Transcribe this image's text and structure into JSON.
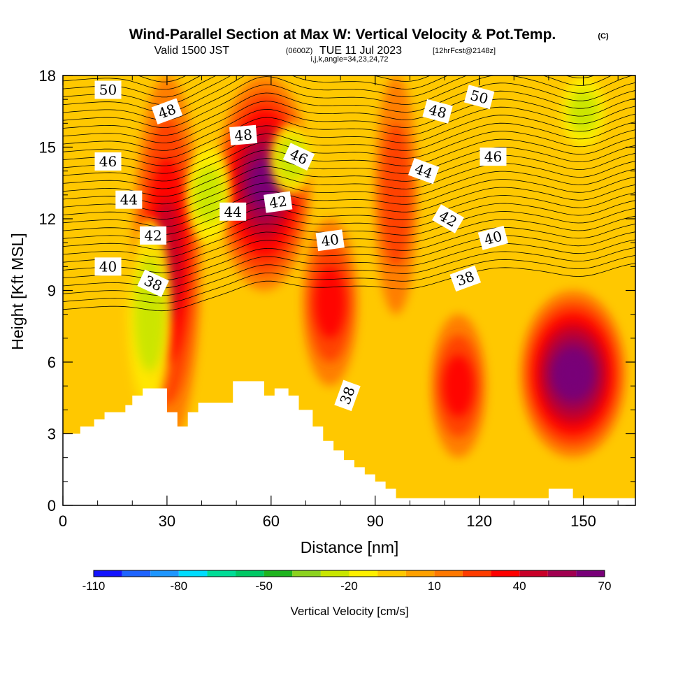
{
  "title": {
    "main": "Wind-Parallel Section at Max W: Vertical Velocity & Pot.Temp.",
    "copyright": "(C)",
    "valid_prefix": "Valid 1500 JST",
    "valid_utc": "(0600Z)",
    "valid_date": "TUE 11 Jul 2023",
    "forecast": "[12hrFcst@2148z]",
    "indices": "i,j,k,angle=34,23,24,72"
  },
  "chart_data": {
    "type": "heatmap",
    "xlabel": "Distance [nm]",
    "ylabel": "Height [Kft MSL]",
    "xlim": [
      0,
      165
    ],
    "ylim": [
      0,
      18
    ],
    "x_ticks": [
      0,
      30,
      60,
      90,
      120,
      150
    ],
    "y_ticks": [
      0,
      3,
      6,
      9,
      12,
      15,
      18
    ],
    "colorbar": {
      "title": "Vertical Velocity [cm/s]",
      "labels": [
        -110,
        -80,
        -50,
        -20,
        10,
        40,
        70
      ],
      "levels": [
        -110,
        -100,
        -90,
        -80,
        -70,
        -60,
        -50,
        -40,
        -30,
        -20,
        -10,
        0,
        10,
        20,
        30,
        40,
        50,
        60,
        70
      ],
      "colors": [
        "#1414ff",
        "#1e64ff",
        "#1e96ff",
        "#00dcff",
        "#00dc96",
        "#00c864",
        "#1eb41e",
        "#8cd21e",
        "#c8e600",
        "#fff000",
        "#ffc800",
        "#ffa000",
        "#ff7800",
        "#ff3c00",
        "#ff0000",
        "#c80028",
        "#a00050",
        "#780078"
      ],
      "position": "bottom"
    },
    "velocity_cores": [
      {
        "x": 30,
        "ymin": 2.5,
        "ymax": 18,
        "w": 40,
        "band": "updraft"
      },
      {
        "x": 58,
        "ymin": 9,
        "ymax": 18,
        "w": 60,
        "band": "updraft"
      },
      {
        "x": 77,
        "ymin": 5,
        "ymax": 12,
        "w": 30,
        "band": "updraft"
      },
      {
        "x": 96,
        "ymin": 8,
        "ymax": 18,
        "w": 25,
        "band": "updraft"
      },
      {
        "x": 114,
        "ymin": 2,
        "ymax": 8,
        "w": 35,
        "band": "updraft"
      },
      {
        "x": 147,
        "ymin": 2,
        "ymax": 9,
        "w": 70,
        "band": "updraft"
      },
      {
        "x": 25,
        "ymin": 4,
        "ymax": 12,
        "w": -20,
        "band": "downdraft"
      },
      {
        "x": 42,
        "ymin": 11,
        "ymax": 15,
        "w": -20,
        "band": "downdraft"
      },
      {
        "x": 66,
        "ymin": 13,
        "ymax": 16,
        "w": -20,
        "band": "downdraft"
      },
      {
        "x": 150,
        "ymin": 15,
        "ymax": 18,
        "w": -20,
        "band": "downdraft"
      }
    ],
    "theta_contours": {
      "labels": [
        {
          "text": "50",
          "x": 13,
          "y": 17.4
        },
        {
          "text": "48",
          "x": 30,
          "y": 16.5,
          "rot": -20
        },
        {
          "text": "48",
          "x": 52,
          "y": 15.5,
          "rot": -5
        },
        {
          "text": "46",
          "x": 68,
          "y": 14.6,
          "rot": 25
        },
        {
          "text": "46",
          "x": 13,
          "y": 14.4
        },
        {
          "text": "44",
          "x": 19,
          "y": 12.8
        },
        {
          "text": "44",
          "x": 49,
          "y": 12.3
        },
        {
          "text": "42",
          "x": 62,
          "y": 12.7,
          "rot": -8
        },
        {
          "text": "42",
          "x": 26,
          "y": 11.3
        },
        {
          "text": "40",
          "x": 77,
          "y": 11.1,
          "rot": -8
        },
        {
          "text": "40",
          "x": 13,
          "y": 10.0
        },
        {
          "text": "38",
          "x": 26,
          "y": 9.3,
          "rot": 25
        },
        {
          "text": "50",
          "x": 120,
          "y": 17.1,
          "rot": 15
        },
        {
          "text": "48",
          "x": 108,
          "y": 16.5,
          "rot": 15
        },
        {
          "text": "44",
          "x": 104,
          "y": 14.0,
          "rot": 20
        },
        {
          "text": "46",
          "x": 124,
          "y": 14.6
        },
        {
          "text": "42",
          "x": 111,
          "y": 12.0,
          "rot": 30
        },
        {
          "text": "40",
          "x": 124,
          "y": 11.2,
          "rot": -15
        },
        {
          "text": "38",
          "x": 116,
          "y": 9.5,
          "rot": -20
        },
        {
          "text": "38",
          "x": 82,
          "y": 4.6,
          "rot": -70
        }
      ]
    },
    "terrain": [
      [
        0,
        3.0
      ],
      [
        5,
        3.3
      ],
      [
        9,
        3.6
      ],
      [
        12,
        3.9
      ],
      [
        18,
        4.2
      ],
      [
        20,
        4.6
      ],
      [
        23,
        4.9
      ],
      [
        30,
        3.9
      ],
      [
        33,
        3.3
      ],
      [
        36,
        3.9
      ],
      [
        39,
        4.3
      ],
      [
        49,
        5.2
      ],
      [
        58,
        4.6
      ],
      [
        61,
        4.9
      ],
      [
        65,
        4.6
      ],
      [
        68,
        4.0
      ],
      [
        72,
        3.3
      ],
      [
        75,
        2.7
      ],
      [
        78,
        2.3
      ],
      [
        81,
        1.9
      ],
      [
        84,
        1.6
      ],
      [
        87,
        1.3
      ],
      [
        90,
        1.0
      ],
      [
        93,
        0.7
      ],
      [
        96,
        0.3
      ],
      [
        140,
        0.7
      ],
      [
        147,
        0.3
      ],
      [
        165,
        0.3
      ]
    ]
  }
}
